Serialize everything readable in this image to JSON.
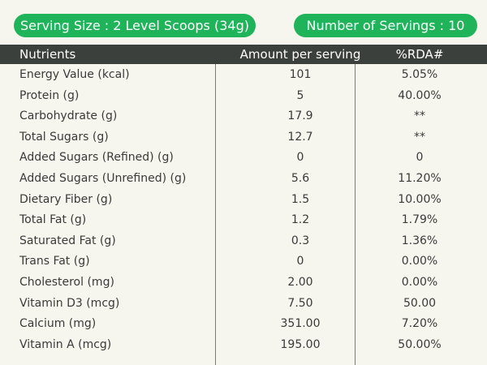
{
  "badges": [
    "Serving Size : 2 Level Scoops (34g)",
    "Number of Servings : 10"
  ],
  "table": {
    "header": [
      "Nutrients",
      "Amount per serving",
      "%RDA#"
    ],
    "rows": [
      [
        "Energy Value (kcal)",
        "101",
        "5.05%"
      ],
      [
        "Protein (g)",
        "5",
        "40.00%"
      ],
      [
        "Carbohydrate (g)",
        "17.9",
        "**"
      ],
      [
        "Total Sugars (g)",
        "12.7",
        "**"
      ],
      [
        "Added Sugars (Refined) (g)",
        "0",
        "0"
      ],
      [
        "Added Sugars (Unrefined) (g)",
        "5.6",
        "11.20%"
      ],
      [
        "Dietary Fiber (g)",
        "1.5",
        "10.00%"
      ],
      [
        "Total Fat (g)",
        "1.2",
        "1.79%"
      ],
      [
        "Saturated Fat (g)",
        "0.3",
        "1.36%"
      ],
      [
        "Trans Fat (g)",
        "0",
        "0.00%"
      ],
      [
        "Cholesterol (mg)",
        "2.00",
        "0.00%"
      ],
      [
        "Vitamin D3 (mcg)",
        "7.50",
        "50.00"
      ],
      [
        "Calcium (mg)",
        "351.00",
        "7.20%"
      ],
      [
        "Vitamin A (mcg)",
        "195.00",
        "50.00%"
      ]
    ]
  }
}
